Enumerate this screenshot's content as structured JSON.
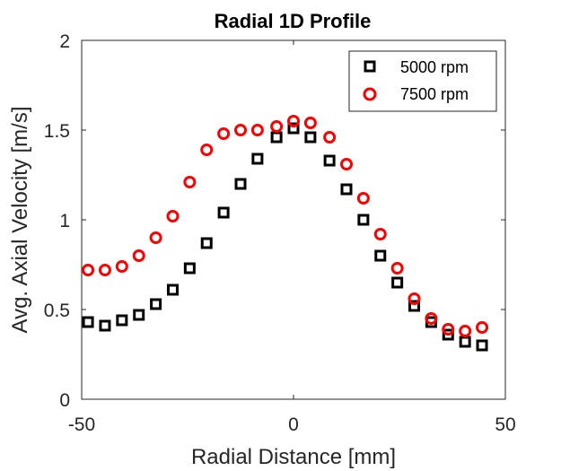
{
  "chart_data": {
    "type": "scatter",
    "title": "Radial 1D Profile",
    "xlabel": "Radial Distance [mm]",
    "ylabel": "Avg. Axial Velocity [m/s]",
    "xlim": [
      -50,
      50
    ],
    "ylim": [
      0,
      2
    ],
    "xticks": [
      -50,
      0,
      50
    ],
    "yticks": [
      0,
      0.5,
      1,
      1.5,
      2
    ],
    "xtick_labels": [
      "-50",
      "0",
      "50"
    ],
    "ytick_labels": [
      "0",
      "0.5",
      "1",
      "1.5",
      "2"
    ],
    "grid": false,
    "legend_position": "top-right",
    "series": [
      {
        "name": "5000 rpm",
        "marker": "square",
        "color": "#000000",
        "x": [
          -48.5,
          -44.5,
          -40.5,
          -36.5,
          -32.5,
          -28.5,
          -24.5,
          -20.5,
          -16.5,
          -12.5,
          -8.5,
          -4.0,
          0.0,
          4.0,
          8.5,
          12.5,
          16.5,
          20.5,
          24.5,
          28.5,
          32.5,
          36.5,
          40.5,
          44.5
        ],
        "y": [
          0.43,
          0.41,
          0.44,
          0.47,
          0.53,
          0.61,
          0.73,
          0.87,
          1.04,
          1.2,
          1.34,
          1.46,
          1.51,
          1.46,
          1.33,
          1.17,
          1.0,
          0.8,
          0.65,
          0.52,
          0.43,
          0.36,
          0.32,
          0.3
        ]
      },
      {
        "name": "7500 rpm",
        "marker": "circle",
        "color": "#ff0000",
        "x": [
          -48.5,
          -44.5,
          -40.5,
          -36.5,
          -32.5,
          -28.5,
          -24.5,
          -20.5,
          -16.5,
          -12.5,
          -8.5,
          -4.0,
          0.0,
          4.0,
          8.5,
          12.5,
          16.5,
          20.5,
          24.5,
          28.5,
          32.5,
          36.5,
          40.5,
          44.5
        ],
        "y": [
          0.72,
          0.72,
          0.74,
          0.8,
          0.9,
          1.02,
          1.21,
          1.39,
          1.48,
          1.5,
          1.5,
          1.52,
          1.55,
          1.54,
          1.46,
          1.31,
          1.12,
          0.92,
          0.73,
          0.56,
          0.45,
          0.39,
          0.38,
          0.4
        ]
      }
    ]
  }
}
